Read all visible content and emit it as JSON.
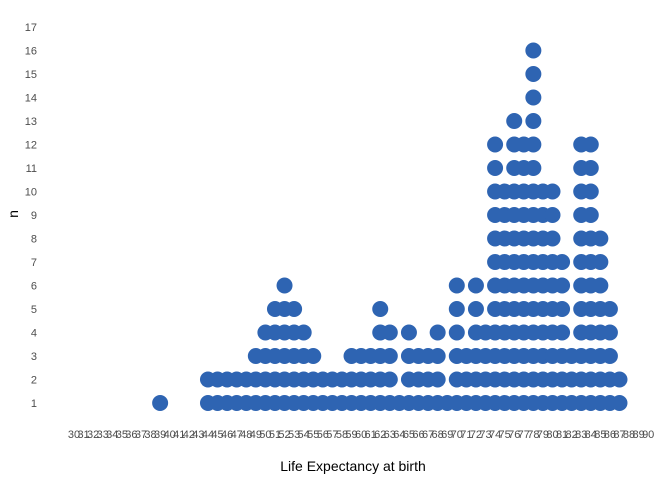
{
  "chart_data": {
    "type": "scatter",
    "subtype": "dot-plot",
    "title": "",
    "xlabel": "Life Expectancy at birth",
    "ylabel": "n",
    "xlim": [
      30,
      90
    ],
    "ylim": [
      1,
      17
    ],
    "x_ticks": [
      "30",
      "31",
      "32",
      "33",
      "34",
      "35",
      "36",
      "37",
      "38",
      "39",
      "40",
      "41",
      "42",
      "43",
      "44",
      "45",
      "46",
      "47",
      "48",
      "49",
      "50",
      "51",
      "52",
      "53",
      "54",
      "55",
      "56",
      "57",
      "58",
      "59",
      "60",
      "61",
      "62",
      "63",
      "64",
      "65",
      "66",
      "67",
      "68",
      "69",
      "70",
      "71",
      "72",
      "73",
      "74",
      "75",
      "76",
      "77",
      "78",
      "79",
      "80",
      "81",
      "82",
      "83",
      "84",
      "85",
      "86",
      "87",
      "88",
      "89",
      "90"
    ],
    "y_ticks": [
      "1",
      "2",
      "3",
      "4",
      "5",
      "6",
      "7",
      "8",
      "9",
      "10",
      "11",
      "12",
      "13",
      "14",
      "15",
      "16",
      "17"
    ],
    "grid": false,
    "dot_color": "#2E64B2",
    "columns": [
      {
        "x": 39,
        "n": 1
      },
      {
        "x": 44,
        "n": 2
      },
      {
        "x": 45,
        "n": 2
      },
      {
        "x": 46,
        "n": 2
      },
      {
        "x": 47,
        "n": 2
      },
      {
        "x": 48,
        "n": 2
      },
      {
        "x": 49,
        "n": 3
      },
      {
        "x": 50,
        "n": 4
      },
      {
        "x": 51,
        "n": 5
      },
      {
        "x": 52,
        "n": 6
      },
      {
        "x": 53,
        "n": 5
      },
      {
        "x": 54,
        "n": 4
      },
      {
        "x": 55,
        "n": 3
      },
      {
        "x": 56,
        "n": 2
      },
      {
        "x": 57,
        "n": 2
      },
      {
        "x": 58,
        "n": 2
      },
      {
        "x": 59,
        "n": 3
      },
      {
        "x": 60,
        "n": 3
      },
      {
        "x": 61,
        "n": 3
      },
      {
        "x": 62,
        "n": 5
      },
      {
        "x": 63,
        "n": 4
      },
      {
        "x": 64,
        "n": 1
      },
      {
        "x": 65,
        "n": 4
      },
      {
        "x": 66,
        "n": 3
      },
      {
        "x": 67,
        "n": 3
      },
      {
        "x": 68,
        "n": 4
      },
      {
        "x": 69,
        "n": 1
      },
      {
        "x": 70,
        "n": 6
      },
      {
        "x": 71,
        "n": 3
      },
      {
        "x": 72,
        "n": 6
      },
      {
        "x": 73,
        "n": 4
      },
      {
        "x": 74,
        "n": 12
      },
      {
        "x": 75,
        "n": 10
      },
      {
        "x": 76,
        "n": 13
      },
      {
        "x": 77,
        "n": 12
      },
      {
        "x": 78,
        "n": 16
      },
      {
        "x": 79,
        "n": 10
      },
      {
        "x": 80,
        "n": 10
      },
      {
        "x": 81,
        "n": 7
      },
      {
        "x": 82,
        "n": 3
      },
      {
        "x": 83,
        "n": 12
      },
      {
        "x": 84,
        "n": 12
      },
      {
        "x": 85,
        "n": 8
      },
      {
        "x": 86,
        "n": 5
      },
      {
        "x": 87,
        "n": 2
      }
    ]
  }
}
